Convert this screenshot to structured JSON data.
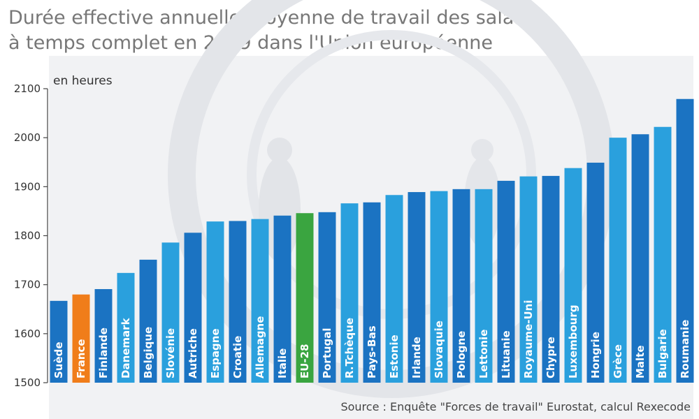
{
  "title": {
    "line1": "Durée effective annuelle moyenne de travail des salariés",
    "line2": "à temps complet en 2019 dans l'Union européenne"
  },
  "unit_label": "en heures",
  "source": "Source : Enquête \"Forces de travail\" Eurostat, calcul Rexecode",
  "colors": {
    "bar_dark": "#1b73c2",
    "bar_light": "#2aa0dd",
    "france": "#f07d1a",
    "eu": "#3aa540",
    "axis": "#444444",
    "background_photo": "#e6e8ec"
  },
  "chart_data": {
    "type": "bar",
    "title": "Durée effective annuelle moyenne de travail des salariés à temps complet en 2019 dans l'Union européenne",
    "xlabel": "",
    "ylabel": "en heures",
    "ylim": [
      1500,
      2100
    ],
    "yticks": [
      1500,
      1600,
      1700,
      1800,
      1900,
      2000,
      2100
    ],
    "grid": false,
    "categories": [
      "Suède",
      "France",
      "Finlande",
      "Danemark",
      "Belgique",
      "Slovénie",
      "Autriche",
      "Espagne",
      "Croatie",
      "Allemagne",
      "Italie",
      "EU-28",
      "Portugal",
      "R.Tchèque",
      "Pays-Bas",
      "Estonie",
      "Irlande",
      "Slovaquie",
      "Pologne",
      "Lettonie",
      "Lituanie",
      "Royaume-Uni",
      "Chypre",
      "Luxembourg",
      "Hongrie",
      "Grèce",
      "Malte",
      "Bulgarie",
      "Roumanie"
    ],
    "values": [
      1667,
      1680,
      1691,
      1724,
      1751,
      1786,
      1806,
      1829,
      1830,
      1834,
      1841,
      1846,
      1848,
      1866,
      1868,
      1883,
      1889,
      1891,
      1895,
      1895,
      1912,
      1921,
      1922,
      1938,
      1949,
      2000,
      2007,
      2022,
      2079
    ],
    "highlight": {
      "France": "france",
      "EU-28": "eu"
    }
  }
}
